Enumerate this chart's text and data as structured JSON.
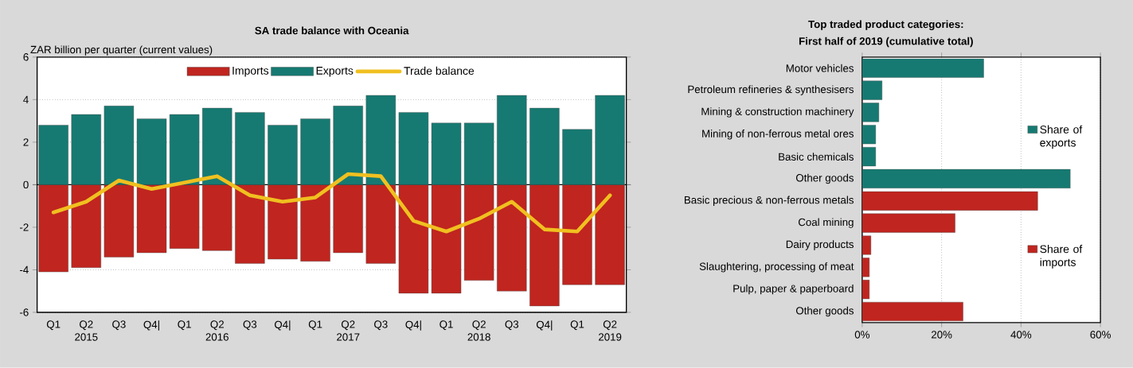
{
  "chart_data": [
    {
      "type": "bar",
      "title": "SA trade balance with Oceania",
      "ylabel": "ZAR billion per quarter (current values)",
      "categories": [
        "Q1",
        "Q2\n2015",
        "Q3",
        "Q4|",
        "Q1",
        "Q2\n2016",
        "Q3",
        "Q4|",
        "Q1",
        "Q2\n2017",
        "Q3",
        "Q4|",
        "Q1",
        "Q2\n2018",
        "Q3",
        "Q4|",
        "Q1",
        "Q2\n2019"
      ],
      "stacked": true,
      "series": [
        {
          "name": "Imports",
          "color": "#c0251f",
          "values": [
            -4.1,
            -3.9,
            -3.4,
            -3.2,
            -3.0,
            -3.1,
            -3.7,
            -3.5,
            -3.6,
            -3.2,
            -3.7,
            -5.1,
            -5.1,
            -4.5,
            -5.0,
            -5.7,
            -4.7,
            -4.7
          ]
        },
        {
          "name": "Exports",
          "color": "#167a72",
          "values": [
            2.8,
            3.3,
            3.7,
            3.1,
            3.3,
            3.6,
            3.4,
            2.8,
            3.1,
            3.7,
            4.2,
            3.4,
            2.9,
            2.9,
            4.2,
            3.6,
            2.6,
            4.2
          ]
        },
        {
          "name": "Trade balance",
          "type": "line",
          "color": "#f0c020",
          "values": [
            -1.3,
            -0.8,
            0.2,
            -0.2,
            0.1,
            0.4,
            -0.5,
            -0.8,
            -0.6,
            0.5,
            0.4,
            -1.7,
            -2.2,
            -1.6,
            -0.8,
            -2.1,
            -2.2,
            -0.5
          ]
        }
      ],
      "ylim": [
        -6,
        6
      ],
      "yticks": [
        -6,
        -4,
        -2,
        0,
        2,
        4,
        6
      ],
      "grid": "y",
      "legend": "top",
      "marker": "none"
    },
    {
      "type": "bar",
      "orientation": "horizontal",
      "title": "Top traded product categories:",
      "subtitle": "First half of 2019 (cumulative total)",
      "categories": [
        "Motor vehicles",
        "Petroleum refineries & synthesisers",
        "Mining & construction machinery",
        "Mining of non-ferrous metal ores",
        "Basic chemicals",
        "Other goods",
        "Basic precious & non-ferrous metals",
        "Coal mining",
        "Dairy products",
        "Slaughtering, processing of meat",
        "Pulp, paper & paperboard",
        "Other goods"
      ],
      "series": [
        {
          "name": "Share of exports",
          "color": "#167a72",
          "values": [
            30.6,
            5.0,
            4.2,
            3.4,
            3.4,
            52.4,
            null,
            null,
            null,
            null,
            null,
            null
          ]
        },
        {
          "name": "Share of imports",
          "color": "#c0251f",
          "values": [
            null,
            null,
            null,
            null,
            null,
            null,
            44.2,
            23.4,
            2.2,
            1.8,
            1.8,
            25.4
          ]
        }
      ],
      "xlim": [
        0,
        60
      ],
      "xticks": [
        {
          "value": 0,
          "label": "0%"
        },
        {
          "value": 20,
          "label": "20%"
        },
        {
          "value": 40,
          "label": "40%"
        },
        {
          "value": 60,
          "label": "60%"
        }
      ],
      "grid": "x",
      "legend": "right"
    }
  ]
}
